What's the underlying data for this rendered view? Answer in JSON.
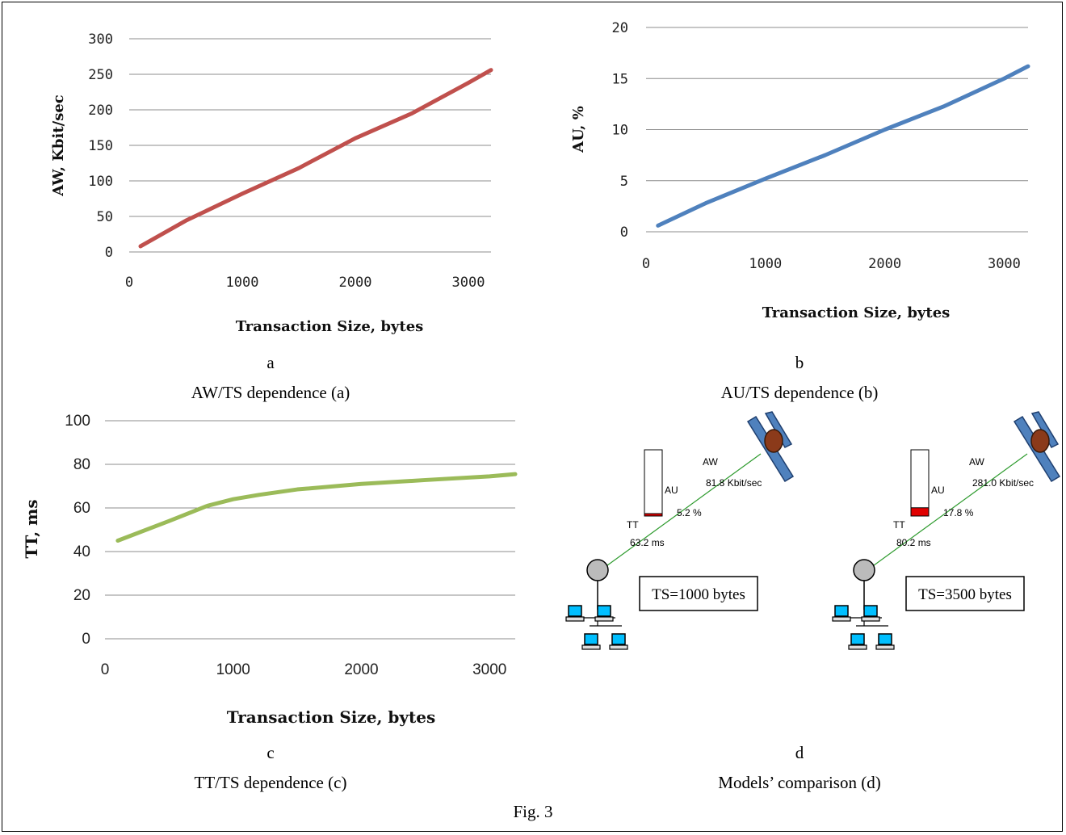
{
  "figure_caption": "Fig. 3",
  "panels": [
    {
      "letter": "a",
      "caption": "AW/TS dependence (a)"
    },
    {
      "letter": "b",
      "caption": "AU/TS dependence (b)"
    },
    {
      "letter": "c",
      "caption": "TT/TS dependence (c)"
    },
    {
      "letter": "d",
      "caption": "Models’ comparison (d)"
    }
  ],
  "chart_data": [
    {
      "type": "line",
      "xlabel": "Transaction Size, bytes",
      "ylabel": "AW,  Kbit/sec",
      "xlim": [
        0,
        3200
      ],
      "ylim": [
        0,
        300
      ],
      "xticks": [
        0,
        1000,
        2000,
        3000
      ],
      "yticks": [
        0,
        50,
        100,
        150,
        200,
        250,
        300
      ],
      "grid": "horizontal",
      "color": "#c0504d",
      "x": [
        100,
        500,
        1000,
        1500,
        2000,
        2500,
        3000,
        3200
      ],
      "y": [
        8,
        44,
        82,
        118,
        160,
        195,
        238,
        256
      ]
    },
    {
      "type": "line",
      "xlabel": "Transaction Size, bytes",
      "ylabel": "AU, %",
      "xlim": [
        0,
        3200
      ],
      "ylim": [
        0,
        20
      ],
      "xticks": [
        0,
        1000,
        2000,
        3000
      ],
      "yticks": [
        0,
        5,
        10,
        15,
        20
      ],
      "grid": "horizontal",
      "color": "#4f81bd",
      "x": [
        100,
        500,
        1000,
        1500,
        2000,
        2500,
        3000,
        3200
      ],
      "y": [
        0.6,
        2.8,
        5.2,
        7.5,
        10.0,
        12.3,
        15.0,
        16.2
      ]
    },
    {
      "type": "line",
      "xlabel": "Transaction Size, bytes",
      "ylabel": "TT, ms",
      "xlim": [
        0,
        3200
      ],
      "ylim": [
        0,
        100
      ],
      "xticks": [
        0,
        1000,
        2000,
        3000
      ],
      "yticks": [
        0,
        20,
        40,
        60,
        80,
        100
      ],
      "grid": "horizontal",
      "color": "#9bbb59",
      "x": [
        100,
        500,
        800,
        1000,
        1200,
        1500,
        2000,
        2500,
        3000,
        3200
      ],
      "y": [
        45,
        54,
        61,
        64,
        66,
        68.5,
        71,
        72.8,
        74.5,
        75.5
      ]
    }
  ],
  "models": [
    {
      "aw_label": "AW",
      "aw_value": "81.8 Kbit/sec",
      "au_label": "AU",
      "au_value": "5.2 %",
      "au_fraction": 0.052,
      "tt_label": "TT",
      "tt_value": "63.2 ms",
      "ts_box": "TS=1000 bytes"
    },
    {
      "aw_label": "AW",
      "aw_value": "281.0 Kbit/sec",
      "au_label": "AU",
      "au_value": "17.8 %",
      "au_fraction": 0.178,
      "tt_label": "TT",
      "tt_value": "80.2 ms",
      "ts_box": "TS=3500 bytes"
    }
  ]
}
